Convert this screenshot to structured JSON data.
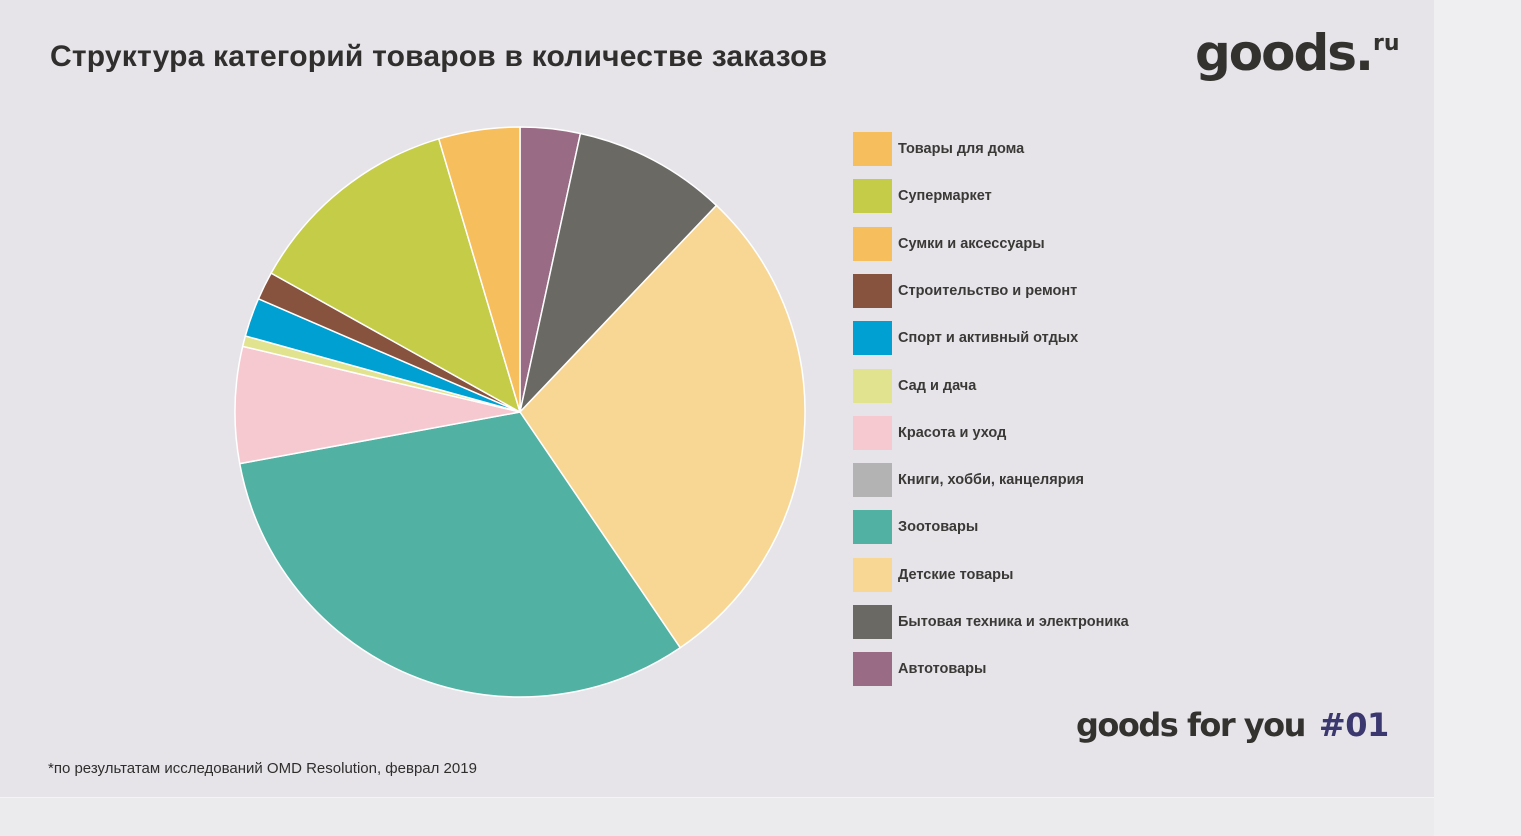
{
  "title": "Структура категорий товаров в количестве заказов",
  "logo": {
    "name": "goods",
    "dot": ".",
    "tld": "ru"
  },
  "tagline": {
    "text": "goods for you",
    "issue": "#01"
  },
  "footnote": "*по результатам исследований OMD Resolution, феврал 2019",
  "chart_data": {
    "type": "pie",
    "title": "Структура категорий товаров в количестве заказов",
    "legend_position": "right",
    "slices": [
      {
        "label": "Автотовары",
        "value": 3.4,
        "color": "#9a6b85"
      },
      {
        "label": "Бытовая техника и электроника",
        "value": 8.7,
        "color": "#6a6964"
      },
      {
        "label": "Детские товары",
        "value": 28.4,
        "color": "#f8d795"
      },
      {
        "label": "Зоотовары",
        "value": 31.6,
        "color": "#51b1a2"
      },
      {
        "label": "Книги, хобби, канцелярия",
        "value": 0.0,
        "color": "#b3b3b3"
      },
      {
        "label": "Красота и уход",
        "value": 6.6,
        "color": "#f6c9d0"
      },
      {
        "label": "Сад и дача",
        "value": 0.6,
        "color": "#e2e38f"
      },
      {
        "label": "Спорт и активный отдых",
        "value": 2.2,
        "color": "#00a0d2"
      },
      {
        "label": "Строительство и ремонт",
        "value": 1.6,
        "color": "#87533f"
      },
      {
        "label": "Сумки и аксессуары",
        "value": 0.0,
        "color": "#f6be5c"
      },
      {
        "label": "Супермаркет",
        "value": 12.3,
        "color": "#c5cc48"
      },
      {
        "label": "Товары для дома",
        "value": 4.6,
        "color": "#f6be5c"
      }
    ],
    "legend": [
      {
        "label": "Товары для дома",
        "color": "#f6be5c"
      },
      {
        "label": "Супермаркет",
        "color": "#c5cc48"
      },
      {
        "label": "Сумки и аксессуары",
        "color": "#f6be5c"
      },
      {
        "label": "Строительство и ремонт",
        "color": "#87533f"
      },
      {
        "label": "Спорт и активный отдых",
        "color": "#00a0d2"
      },
      {
        "label": "Сад и дача",
        "color": "#e2e38f"
      },
      {
        "label": "Красота и уход",
        "color": "#f6c9d0"
      },
      {
        "label": "Книги, хобби, канцелярия",
        "color": "#b3b3b3"
      },
      {
        "label": "Зоотовары",
        "color": "#51b1a2"
      },
      {
        "label": "Детские товары",
        "color": "#f8d795"
      },
      {
        "label": "Бытовая техника и электроника",
        "color": "#6a6964"
      },
      {
        "label": "Автотовары",
        "color": "#9a6b85"
      }
    ]
  }
}
